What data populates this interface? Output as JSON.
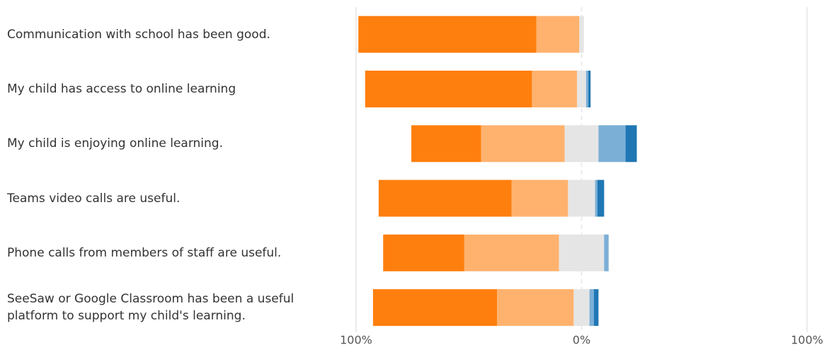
{
  "chart_data": {
    "type": "diverging-bar",
    "categories": [
      "Communication with school has been good.",
      "My child has access to online learning",
      "My child is enjoying online learning.",
      "Teams video calls are useful.",
      "Phone calls from members of staff are useful.",
      "SeeSaw or Google Classroom has been a useful platform to support my child's learning."
    ],
    "series": [
      {
        "color": "#ff7f0e",
        "values": [
          79,
          74,
          31,
          59,
          36,
          55
        ]
      },
      {
        "color": "#ffb26e",
        "values": [
          19,
          20,
          37,
          25,
          42,
          34
        ]
      },
      {
        "color": "#e5e5e5",
        "values": [
          2,
          4,
          15,
          12,
          20,
          7
        ]
      },
      {
        "color": "#7bafd6",
        "values": [
          0,
          1,
          12,
          1,
          2,
          2
        ]
      },
      {
        "color": "#1f77b4",
        "values": [
          0,
          1,
          5,
          3,
          0,
          2
        ]
      }
    ],
    "xlim": [
      -100,
      100
    ],
    "xticks": [
      {
        "value": -100,
        "label": "100%"
      },
      {
        "value": 0,
        "label": "0%"
      },
      {
        "value": 100,
        "label": "100%"
      }
    ],
    "grid": true
  }
}
